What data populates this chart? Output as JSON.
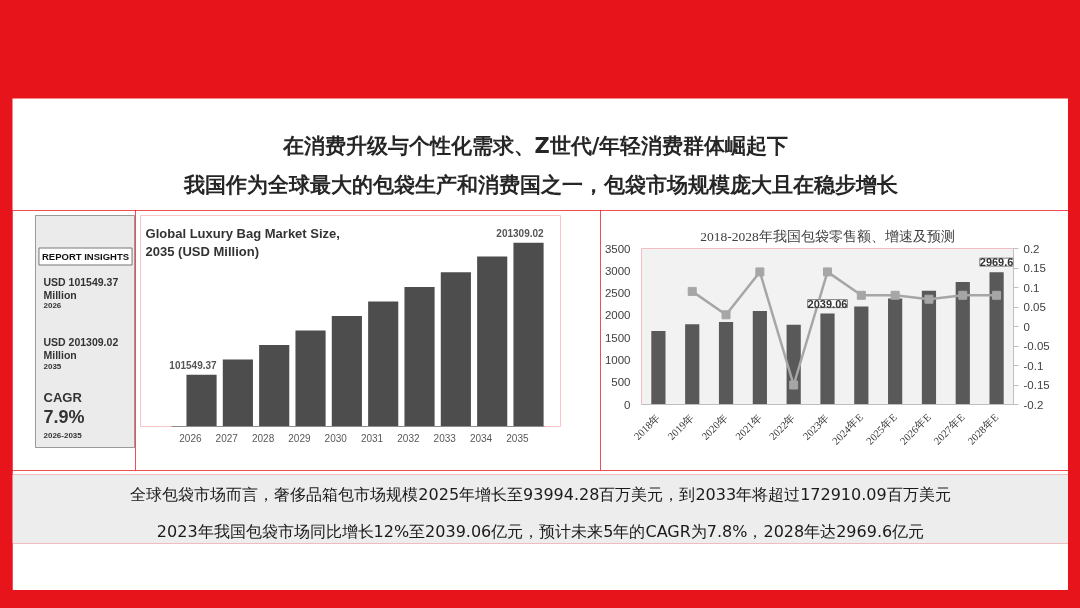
{
  "chart_data": [
    {
      "type": "other",
      "title": "在消费升级与个性化需求、Z世代/年轻消费群体崛起下",
      "subtitle": "我国作为全球最大的包袋生产和消费国之一，包袋市场规模庞大且在稳步增长",
      "annotations": [
        "全球包袋市场而言，奢侈品箱包市场规模2025年增长至93994.28百万美元，到2033年将超过172910.09百万美元",
        "2023年我国包袋市场同比增长12%至2039.06亿元，预计未来5年的CAGR为7.8%，2028年达2969.6亿元"
      ]
    },
    {
      "type": "other",
      "title": "REPORT INSIGHTS",
      "annotations": [
        "USD 101549.37",
        "Million",
        "2026",
        "USD 201309.02",
        "Million",
        "2035",
        "CAGR",
        "7.9%",
        "2026-2035"
      ]
    },
    {
      "type": "bar",
      "title": "Global Luxury Bag Market Size, 2035 (USD Million)",
      "categories": [
        "2026",
        "2027",
        "2028",
        "2029",
        "2030",
        "2031",
        "2032",
        "2033",
        "2034",
        "2035"
      ],
      "values": [
        101549.37,
        113000,
        124000,
        135000,
        146000,
        157000,
        168000,
        179000,
        191000,
        201309.02
      ],
      "value_labels": [
        "101549.37",
        null,
        null,
        null,
        null,
        null,
        null,
        null,
        null,
        "201309.02"
      ],
      "color": "#4d4d4d",
      "ylim": [
        62400,
        222000
      ],
      "tick_labels": "x"
    },
    {
      "type": "bar",
      "title": "2018-2028年我国包袋零售额、增速及预测",
      "categories": [
        "2018年",
        "2019年",
        "2020年",
        "2021年",
        "2022年",
        "2023年",
        "2024年E",
        "2025年E",
        "2026年E",
        "2027年E",
        "2028年E"
      ],
      "series": [
        {
          "type": "bar",
          "color": "#595959",
          "values": [
            1650,
            1800,
            1850,
            2100,
            1790,
            2039.06,
            2200,
            2380,
            2550,
            2750,
            2969.6
          ],
          "value_labels": [
            null,
            null,
            null,
            null,
            null,
            "2039.06",
            null,
            null,
            null,
            null,
            "2969.6"
          ]
        },
        {
          "type": "line",
          "axis": "y2",
          "color": "#a6a6a6",
          "marker": "square",
          "values": [
            null,
            0.09,
            0.03,
            0.14,
            -0.15,
            0.14,
            0.08,
            0.08,
            0.07,
            0.08,
            0.08
          ]
        }
      ],
      "ylim": [
        0,
        3500
      ],
      "yticks": [
        0,
        500,
        1000,
        1500,
        2000,
        2500,
        3000,
        3500
      ],
      "y2lim": [
        -0.2,
        0.2
      ],
      "y2ticks": [
        -0.2,
        -0.15,
        -0.1,
        -0.05,
        0,
        0.05,
        0.1,
        0.15,
        0.2
      ]
    }
  ]
}
